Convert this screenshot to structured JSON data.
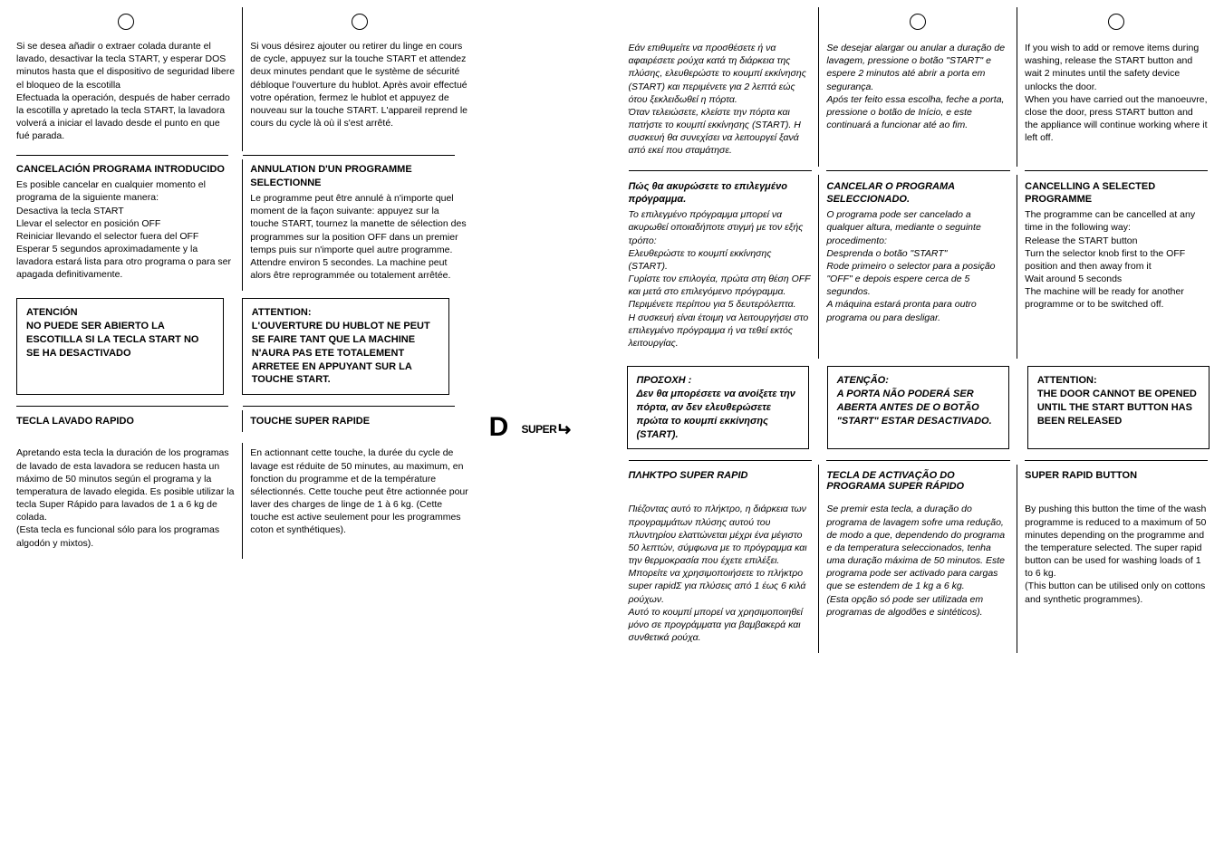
{
  "left": {
    "es_intro": "Si se desea añadir o extraer colada durante el lavado, desactivar la tecla START, y esperar DOS minutos hasta que el dispositivo de seguridad libere el bloqueo de la escotilla\nEfectuada la operación, después de haber cerrado la escotilla y apretado la tecla START, la lavadora volverá a iniciar el lavado desde el punto en que fué parada.",
    "fr_intro": "Si vous désirez ajouter ou retirer du linge en cours de cycle, appuyez sur la touche START et attendez deux minutes pendant que le système de sécurité débloque l'ouverture du hublot. Après avoir effectué votre opération, fermez le hublot et appuyez de nouveau sur la touche START. L'appareil reprend le cours du cycle là où il s'est arrêté.",
    "es_cancel_head": "CANCELACIÓN PROGRAMA INTRODUCIDO",
    "es_cancel": "Es posible cancelar en cualquier momento el programa de la siguiente manera:\nDesactiva la tecla START\nLlevar el selector en posición OFF\nReiniciar llevando el selector fuera del OFF\nEsperar 5 segundos aproximadamente y la lavadora estará lista para otro programa o para ser apagada definitivamente.",
    "fr_cancel_head": "ANNULATION D'UN PROGRAMME SELECTIONNE",
    "fr_cancel": "Le programme peut être annulé à n'importe quel moment de la façon suivante: appuyez sur la touche START, tournez la manette de sélection des programmes sur la position OFF dans un premier temps puis sur n'importe quel autre programme. Attendre environ 5 secondes. La machine peut alors être reprogrammée ou totalement arrêtée.",
    "es_warn": "ATENCIÓN\nNO PUEDE SER ABIERTO LA ESCOTILLA SI LA TECLA START NO SE HA DESACTIVADO",
    "fr_warn": "ATTENTION:\nL'OUVERTURE DU HUBLOT NE PEUT SE FAIRE TANT QUE LA MACHINE N'AURA PAS ETE TOTALEMENT ARRETEE EN APPUYANT SUR LA TOUCHE START.",
    "es_sr_head": "TECLA LAVADO RAPIDO",
    "fr_sr_head": "TOUCHE SUPER RAPIDE",
    "letter_d": "D",
    "sr_label": "SUPER",
    "es_sr": "Apretando esta tecla la duración de los programas de lavado de esta lavadora se reducen hasta un máximo de 50 minutos según el programa y la temperatura de lavado elegida. Es posible utilizar la tecla Super Rápido para lavados de 1 a 6 kg de colada.\n(Esta tecla es funcional sólo para los programas algodón y mixtos).",
    "fr_sr": "En actionnant cette touche, la durée du cycle de lavage est réduite de 50 minutes, au maximum, en fonction du programme et de la température sélectionnés. Cette touche peut être actionnée pour laver des charges de linge de 1 à 6 kg. (Cette touche est active seulement pour les programmes coton et synthétiques)."
  },
  "right": {
    "gr_intro": "Εάν επιθυμείτε να προσθέσετε ή να αφαιρέσετε ρούχα κατά τη διάρκεια της πλύσης, ελευθερώστε το κουμπί εκκίνησης (START) και περιμένετε για 2 λεπτά εώς ότου ξεκλειδωθεί η πόρτα.\nΌταν τελειώσετε, κλείστε την πόρτα και πατήστε το κουμπί εκκίνησης (START). Η συσκευή θα συνεχίσει να λειτουργεί ξανά από εκεί που σταμάτησε.",
    "pt_intro": "Se desejar alargar ou anular a duração de lavagem, pressione o botão \"START\" e espere 2 minutos até abrir a porta em segurança.\nApós ter feito essa escolha, feche a porta, pressione o botão de Início, e este continuará a funcionar até ao fim.",
    "en_intro": "If you wish to add or remove items during washing, release the START button and wait 2 minutes until the safety device unlocks the door.\nWhen you have carried out the manoeuvre, close the door, press START button and the appliance will continue working where it left off.",
    "gr_cancel_head": "Πώς θα ακυρώσετε το επιλεγμένο πρόγραμμα.",
    "gr_cancel": "Το επιλεγμένο πρόγραμμα μπορεί να ακυρωθεί οποιαδήποτε στιγμή με τον εξής τρόπο:\nΕλευθερώστε το κουμπί εκκίνησης (START).\nΓυρίστε τον επιλογέα, πρώτα στη θέση OFF και μετά στο επιλεγόμενο πρόγραμμα. Περιμένετε περίπου για 5 δευτερόλεπτα.\nΗ συσκευή είναι έτοιμη να λειτουργήσει στο επιλεγμένο πρόγραμμα ή να τεθεί εκτός λειτουργίας.",
    "pt_cancel_head": "CANCELAR O PROGRAMA SELECCIONADO.",
    "pt_cancel": "O programa pode ser cancelado a qualquer altura, mediante o seguinte procedimento:\nDesprenda o botão \"START\"\nRode primeiro o selector para a posição \"OFF\" e depois espere cerca de 5 segundos.\nA máquina estará pronta para outro programa ou para desligar.",
    "en_cancel_head": "CANCELLING A SELECTED PROGRAMME",
    "en_cancel": "The programme can be cancelled at any time in the following way:\nRelease the START button\nTurn the selector knob first to the OFF position and then away from it\nWait around 5 seconds\nThe machine will be ready for another programme or to be switched off.",
    "gr_warn": "ΠΡΟΣΟΧΗ :\nΔεν θα μπορέσετε να ανοίξετε την πόρτα, αν δεν ελευθερώσετε πρώτα το κουμπί εκκίνησης (START).",
    "pt_warn": "ATENÇÃO:\nA PORTA NÃO PODERÁ SER ABERTA ANTES DE O BOTÃO \"START\" ESTAR DESACTIVADO.",
    "en_warn": "ATTENTION:\nTHE DOOR CANNOT BE OPENED UNTIL THE START BUTTON HAS BEEN RELEASED",
    "gr_sr_head": "ΠΛΗΚΤΡΟ SUPER RAPID",
    "pt_sr_head": "TECLA DE ACTIVAÇÃO DO PROGRAMA SUPER RÁPIDO",
    "en_sr_head": "SUPER RAPID BUTTON",
    "gr_sr": "Πιέζοντας αυτό το πλήκτρο, η διάρκεια των προγραμμάτων πλύσης αυτού του πλυντηρίου ελαττώνεται μέχρι ένα μέγιστο 50 λεπτών, σύμφωνα με το πρόγραμμα και την θερμοκρασία που έχετε επιλέξει. Μπορείτε να χρησιμοποιήσετε το πλήκτρο super rapidΣ για πλύσεις από 1 έως 6 κιλά ρούχων.\nΑυτό το κουμπί μπορεί να χρησιμοποιηθεί μόνο σε προγράμματα για βαμβακερά και συνθετικά ρούχα.",
    "pt_sr": "Se premir esta tecla, a duração do programa de lavagem sofre uma redução, de modo a que, dependendo do programa e da temperatura seleccionados, tenha uma duração máxima de 50 minutos. Este programa pode ser activado para cargas que se estendem de 1 kg a 6 kg.\n(Esta opção só pode ser utilizada em programas de algodões e sintéticos).",
    "en_sr": "By pushing this button the time of the wash programme is reduced to a maximum of 50 minutes depending on the programme and the temperature selected. The super rapid button can be used for washing loads of 1 to 6 kg.\n(This button can be utilised only on cottons and synthetic programmes)."
  }
}
